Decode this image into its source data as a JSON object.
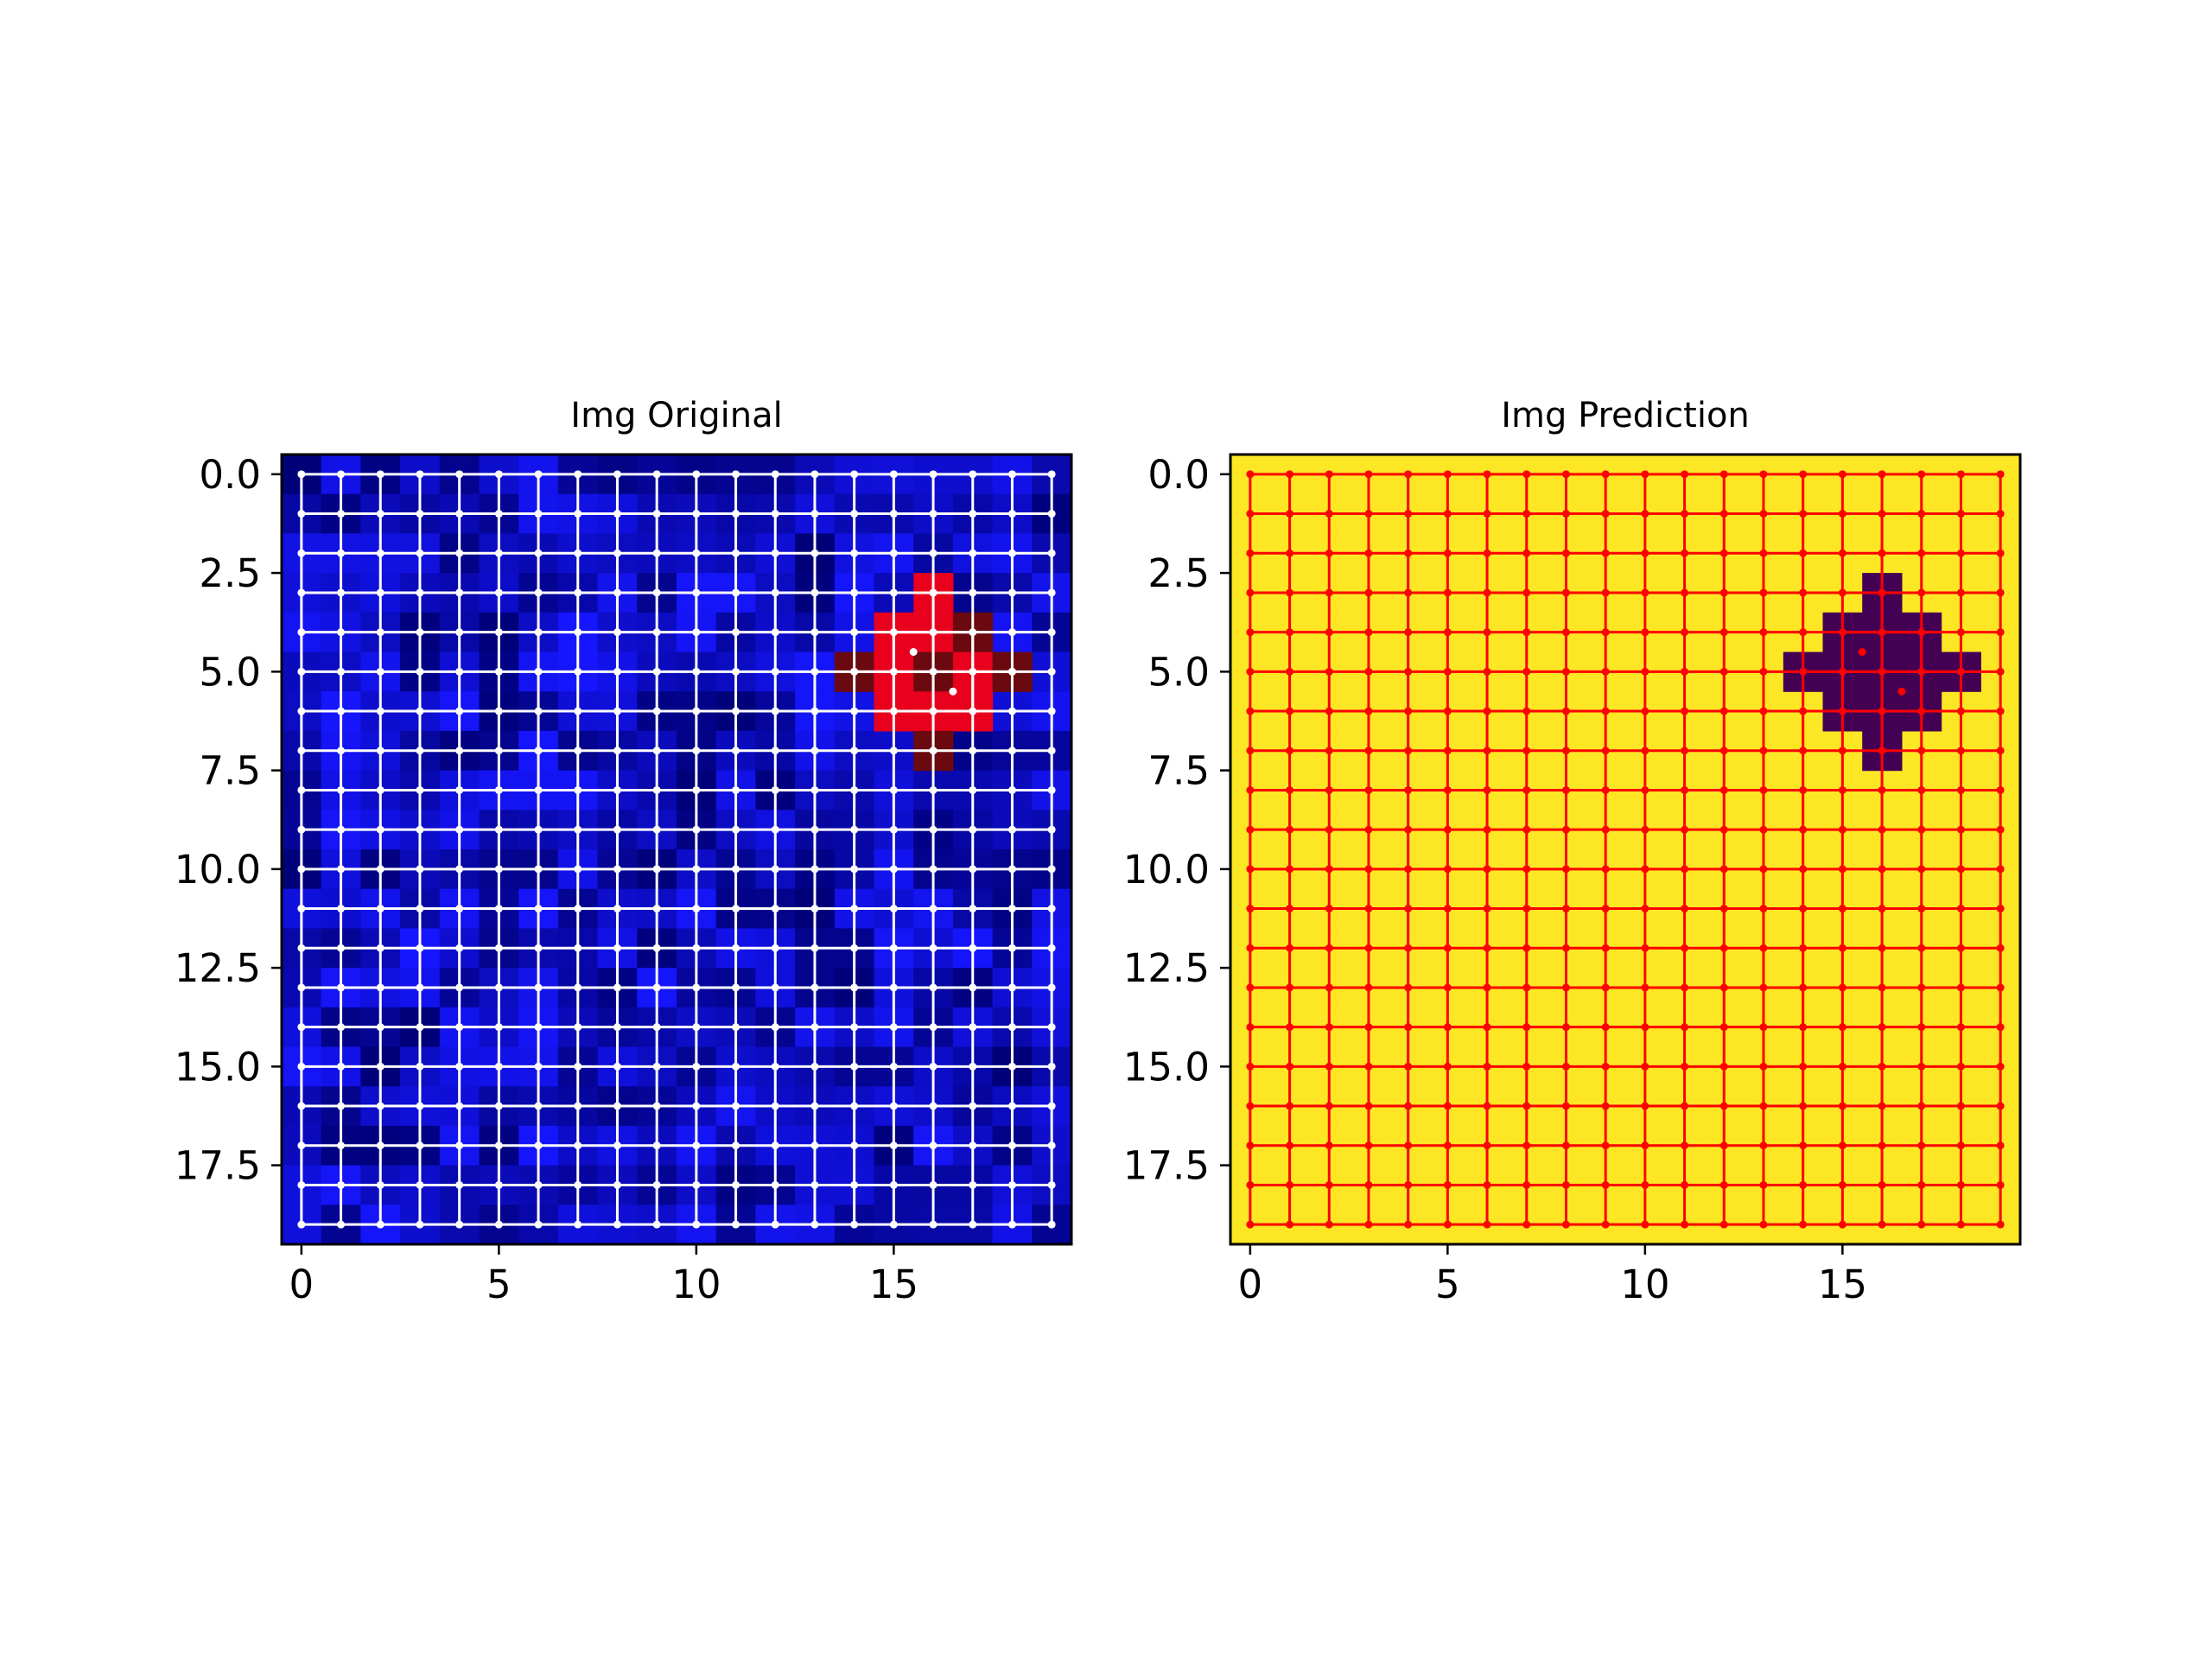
{
  "chart_data": [
    {
      "type": "heatmap",
      "title": "Img Original",
      "xlabel": "",
      "ylabel": "",
      "grid_size": [
        20,
        20
      ],
      "xlim": [
        -0.5,
        19.5
      ],
      "ylim": [
        19.5,
        -0.5
      ],
      "x_ticks": [
        "0",
        "5",
        "10",
        "15"
      ],
      "y_ticks": [
        "0.0",
        "2.5",
        "5.0",
        "7.5",
        "10.0",
        "12.5",
        "15.0",
        "17.5"
      ],
      "background": "noisy blue texture",
      "colors": {
        "background": "#1414e6",
        "region_bright": "#e8001c",
        "region_dark": "#6a0a10",
        "graph": "#ffffff"
      },
      "highlighted_region": [
        {
          "x": 16,
          "y": 3
        },
        {
          "x": 15,
          "y": 4
        },
        {
          "x": 16,
          "y": 4
        },
        {
          "x": 17,
          "y": 4
        },
        {
          "x": 14,
          "y": 5
        },
        {
          "x": 15,
          "y": 5
        },
        {
          "x": 16,
          "y": 5
        },
        {
          "x": 17,
          "y": 5
        },
        {
          "x": 18,
          "y": 5
        },
        {
          "x": 15,
          "y": 6
        },
        {
          "x": 16,
          "y": 6
        },
        {
          "x": 17,
          "y": 6
        },
        {
          "x": 16,
          "y": 7
        }
      ],
      "graph_overlay": "4-connected grid graph: nodes at every integer (x, y), 0..19; extra nodes/edges inside the region; node and edge color white"
    },
    {
      "type": "heatmap",
      "title": "Img Prediction",
      "xlabel": "",
      "ylabel": "",
      "grid_size": [
        20,
        20
      ],
      "xlim": [
        -0.5,
        19.5
      ],
      "ylim": [
        19.5,
        -0.5
      ],
      "x_ticks": [
        "0",
        "5",
        "10",
        "15"
      ],
      "y_ticks": [
        "0.0",
        "2.5",
        "5.0",
        "7.5",
        "10.0",
        "12.5",
        "15.0",
        "17.5"
      ],
      "background": "uniform yellow",
      "colors": {
        "background": "#fde725",
        "region": "#440154",
        "graph": "#ff0000"
      },
      "highlighted_region": [
        {
          "x": 16,
          "y": 3
        },
        {
          "x": 15,
          "y": 4
        },
        {
          "x": 16,
          "y": 4
        },
        {
          "x": 17,
          "y": 4
        },
        {
          "x": 14,
          "y": 5
        },
        {
          "x": 15,
          "y": 5
        },
        {
          "x": 16,
          "y": 5
        },
        {
          "x": 17,
          "y": 5
        },
        {
          "x": 18,
          "y": 5
        },
        {
          "x": 15,
          "y": 6
        },
        {
          "x": 16,
          "y": 6
        },
        {
          "x": 17,
          "y": 6
        },
        {
          "x": 16,
          "y": 7
        }
      ],
      "graph_overlay": "4-connected grid graph: nodes at every integer (x, y), 0..19; extra nodes/edges inside the region; node and edge color red"
    }
  ]
}
